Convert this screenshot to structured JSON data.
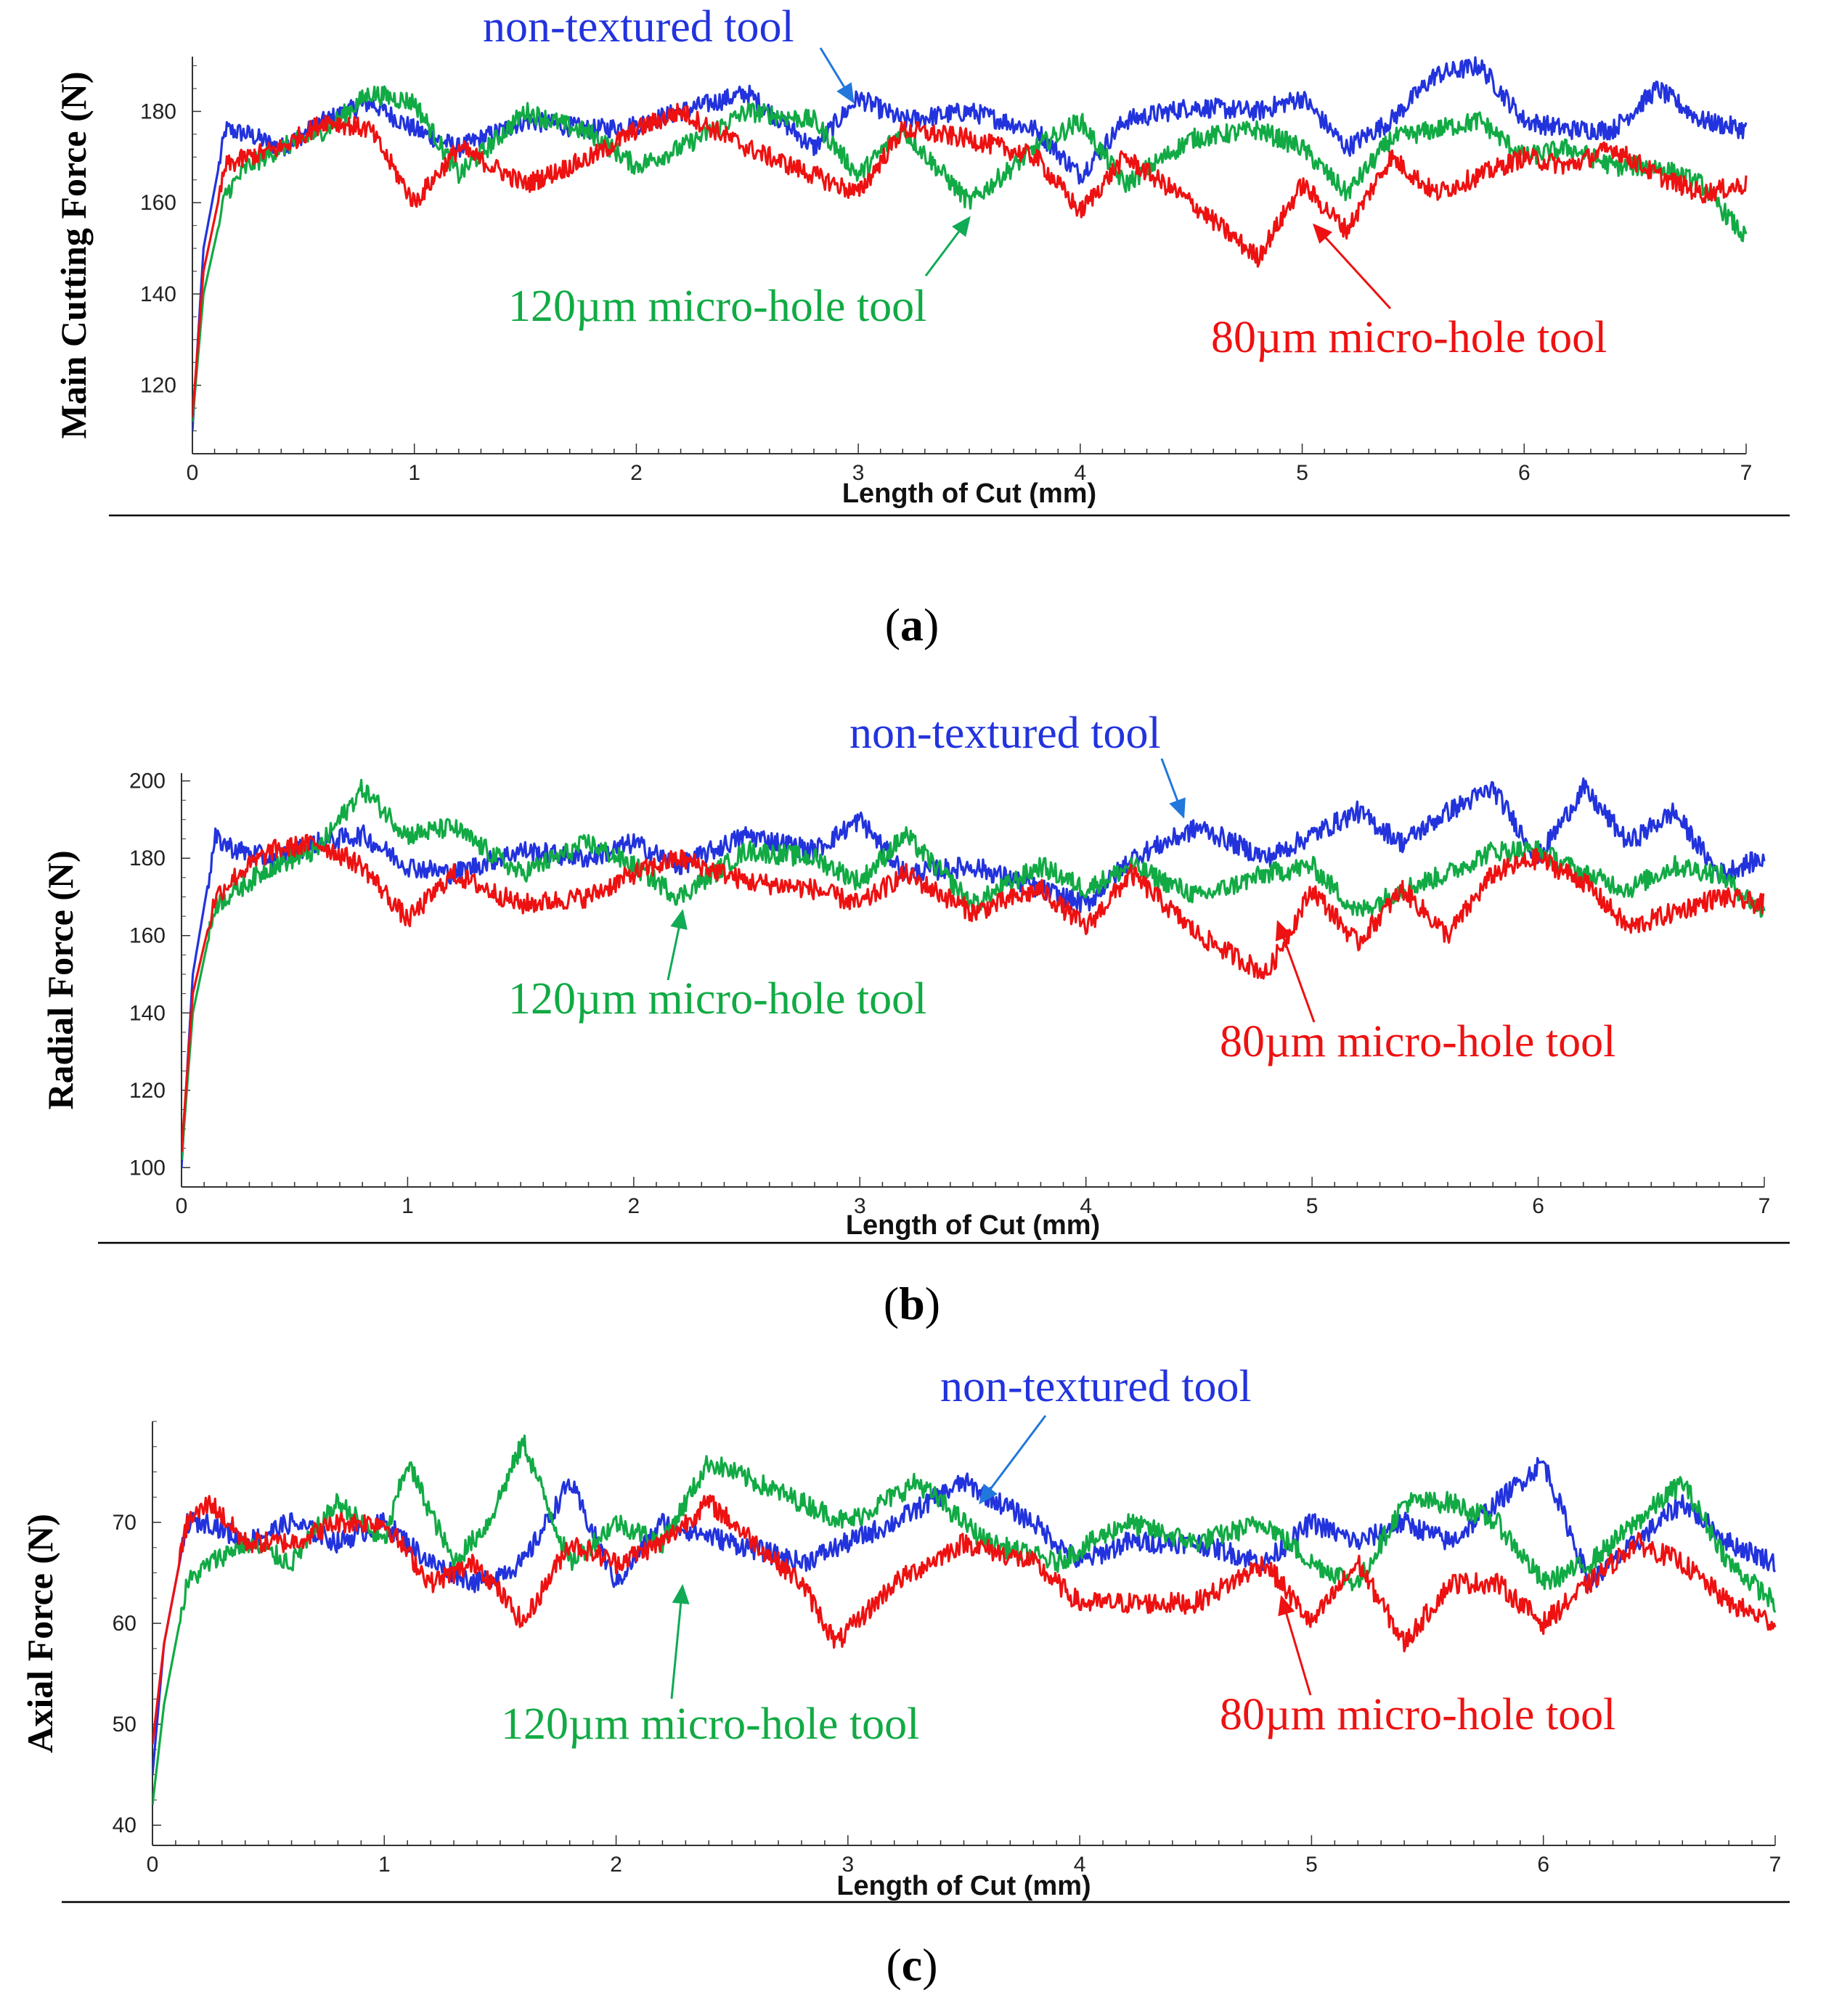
{
  "chart_data": [
    {
      "type": "line",
      "panel": "a",
      "caption_letter": "a",
      "xlabel": "Length of Cut (mm)",
      "ylabel": "Main Cutting Force (N)",
      "xlim": [
        0,
        7
      ],
      "ylim": [
        105,
        192
      ],
      "xticks": [
        0,
        1,
        2,
        3,
        4,
        5,
        6,
        7
      ],
      "yticks": [
        120,
        140,
        160,
        180
      ],
      "series": [
        {
          "name": "non-textured tool",
          "color": "#2233dd",
          "x": [
            0,
            0.05,
            0.15,
            0.25,
            0.4,
            0.6,
            0.8,
            1.0,
            1.2,
            1.5,
            1.8,
            2.0,
            2.2,
            2.5,
            2.8,
            3.0,
            3.2,
            3.5,
            3.8,
            4.0,
            4.2,
            4.5,
            4.8,
            5.0,
            5.2,
            5.4,
            5.6,
            5.8,
            6.0,
            6.2,
            6.4,
            6.6,
            6.8,
            7.0
          ],
          "values": [
            110,
            150,
            176,
            175,
            172,
            178,
            182,
            176,
            172,
            178,
            176,
            177,
            180,
            184,
            172,
            183,
            178,
            180,
            176,
            166,
            178,
            181,
            180,
            183,
            172,
            178,
            188,
            190,
            178,
            176,
            176,
            185,
            178,
            176
          ]
        },
        {
          "name": "120µm micro-hole tool",
          "color": "#11aa44",
          "x": [
            0,
            0.05,
            0.15,
            0.25,
            0.4,
            0.6,
            0.8,
            1.0,
            1.2,
            1.5,
            1.8,
            2.0,
            2.2,
            2.5,
            2.8,
            3.0,
            3.2,
            3.5,
            3.8,
            4.0,
            4.2,
            4.5,
            4.8,
            5.0,
            5.2,
            5.4,
            5.6,
            5.8,
            6.0,
            6.2,
            6.4,
            6.6,
            6.8,
            7.0
          ],
          "values": [
            112,
            140,
            162,
            168,
            172,
            176,
            184,
            182,
            166,
            180,
            175,
            168,
            172,
            180,
            178,
            166,
            176,
            160,
            172,
            178,
            164,
            174,
            176,
            172,
            162,
            174,
            176,
            178,
            170,
            172,
            168,
            168,
            164,
            152
          ]
        },
        {
          "name": "80µm micro-hole tool",
          "color": "#ee1111",
          "x": [
            0,
            0.05,
            0.15,
            0.25,
            0.4,
            0.6,
            0.8,
            1.0,
            1.2,
            1.5,
            1.8,
            2.0,
            2.2,
            2.5,
            2.8,
            3.0,
            3.2,
            3.5,
            3.8,
            4.0,
            4.2,
            4.5,
            4.8,
            5.0,
            5.2,
            5.4,
            5.6,
            5.8,
            6.0,
            6.2,
            6.4,
            6.6,
            6.8,
            7.0
          ],
          "values": [
            113,
            145,
            168,
            170,
            172,
            178,
            176,
            160,
            172,
            164,
            170,
            176,
            180,
            172,
            166,
            162,
            176,
            174,
            170,
            158,
            170,
            160,
            148,
            164,
            154,
            170,
            162,
            166,
            170,
            168,
            172,
            166,
            162,
            164
          ]
        }
      ],
      "annotations": [
        {
          "text": "non-textured tool",
          "color": "#2233dd"
        },
        {
          "text": "120µm micro-hole tool",
          "color": "#11aa44"
        },
        {
          "text": "80µm micro-hole tool",
          "color": "#ee1111"
        }
      ]
    },
    {
      "type": "line",
      "panel": "b",
      "caption_letter": "b",
      "xlabel": "Length of Cut (mm)",
      "ylabel": "Radial Force (N)",
      "xlim": [
        0,
        7
      ],
      "ylim": [
        95,
        202
      ],
      "xticks": [
        0,
        1,
        2,
        3,
        4,
        5,
        6,
        7
      ],
      "yticks": [
        100,
        120,
        140,
        160,
        180,
        200
      ],
      "series": [
        {
          "name": "non-textured tool",
          "color": "#2233dd",
          "x": [
            0,
            0.05,
            0.15,
            0.25,
            0.4,
            0.6,
            0.8,
            1.0,
            1.2,
            1.5,
            1.8,
            2.0,
            2.2,
            2.5,
            2.8,
            3.0,
            3.2,
            3.5,
            3.8,
            4.0,
            4.2,
            4.5,
            4.8,
            5.0,
            5.2,
            5.4,
            5.6,
            5.8,
            6.0,
            6.2,
            6.4,
            6.6,
            6.8,
            7.0
          ],
          "values": [
            100,
            150,
            185,
            182,
            180,
            184,
            186,
            178,
            176,
            182,
            180,
            184,
            178,
            186,
            182,
            190,
            176,
            178,
            172,
            168,
            180,
            188,
            180,
            186,
            192,
            184,
            192,
            198,
            180,
            198,
            184,
            192,
            176,
            180
          ]
        },
        {
          "name": "120µm micro-hole tool",
          "color": "#11aa44",
          "x": [
            0,
            0.05,
            0.15,
            0.25,
            0.4,
            0.6,
            0.8,
            1.0,
            1.2,
            1.5,
            1.8,
            2.0,
            2.2,
            2.5,
            2.8,
            3.0,
            3.2,
            3.5,
            3.8,
            4.0,
            4.2,
            4.5,
            4.8,
            5.0,
            5.2,
            5.4,
            5.6,
            5.8,
            6.0,
            6.2,
            6.4,
            6.6,
            6.8,
            7.0
          ],
          "values": [
            102,
            140,
            168,
            172,
            178,
            182,
            198,
            186,
            188,
            176,
            184,
            178,
            170,
            182,
            180,
            174,
            186,
            168,
            178,
            172,
            178,
            170,
            176,
            178,
            166,
            172,
            176,
            182,
            182,
            176,
            172,
            178,
            176,
            166
          ]
        },
        {
          "name": "80µm micro-hole tool",
          "color": "#ee1111",
          "x": [
            0,
            0.05,
            0.15,
            0.25,
            0.4,
            0.6,
            0.8,
            1.0,
            1.2,
            1.5,
            1.8,
            2.0,
            2.2,
            2.5,
            2.8,
            3.0,
            3.2,
            3.5,
            3.8,
            4.0,
            4.2,
            4.5,
            4.8,
            5.0,
            5.2,
            5.4,
            5.6,
            5.8,
            6.0,
            6.2,
            6.4,
            6.6,
            6.8,
            7.0
          ],
          "values": [
            104,
            145,
            170,
            176,
            182,
            184,
            178,
            164,
            176,
            168,
            170,
            176,
            180,
            174,
            172,
            168,
            176,
            166,
            172,
            162,
            176,
            160,
            150,
            172,
            158,
            172,
            160,
            176,
            180,
            174,
            162,
            166,
            170,
            168
          ]
        }
      ],
      "annotations": [
        {
          "text": "non-textured tool",
          "color": "#2233dd"
        },
        {
          "text": "120µm micro-hole tool",
          "color": "#11aa44"
        },
        {
          "text": "80µm micro-hole tool",
          "color": "#ee1111"
        }
      ]
    },
    {
      "type": "line",
      "panel": "c",
      "caption_letter": "c",
      "xlabel": "Length of Cut (mm)",
      "ylabel": "Axial Force (N)",
      "xlim": [
        0,
        7
      ],
      "ylim": [
        38,
        80
      ],
      "xticks": [
        0,
        1,
        2,
        3,
        4,
        5,
        6,
        7
      ],
      "yticks": [
        40,
        50,
        60,
        70
      ],
      "series": [
        {
          "name": "non-textured tool",
          "color": "#2233dd",
          "x": [
            0,
            0.05,
            0.15,
            0.25,
            0.4,
            0.6,
            0.8,
            1.0,
            1.2,
            1.4,
            1.6,
            1.8,
            2.0,
            2.2,
            2.5,
            2.8,
            3.0,
            3.2,
            3.5,
            3.8,
            4.0,
            4.2,
            4.5,
            4.8,
            5.0,
            5.2,
            5.4,
            5.6,
            5.8,
            6.0,
            6.2,
            6.4,
            6.6,
            6.8,
            7.0
          ],
          "values": [
            45,
            58,
            70,
            70,
            68,
            70,
            68,
            70,
            66,
            64,
            66,
            74,
            64,
            70,
            68,
            66,
            68,
            70,
            74,
            70,
            66,
            68,
            68,
            66,
            70,
            68,
            70,
            68,
            72,
            76,
            64,
            68,
            72,
            68,
            66
          ]
        },
        {
          "name": "120µm micro-hole tool",
          "color": "#11aa44",
          "x": [
            0,
            0.05,
            0.15,
            0.25,
            0.4,
            0.6,
            0.8,
            1.0,
            1.1,
            1.3,
            1.45,
            1.6,
            1.8,
            2.0,
            2.2,
            2.4,
            2.6,
            2.8,
            3.0,
            3.3,
            3.6,
            3.9,
            4.2,
            4.5,
            4.8,
            5.0,
            5.2,
            5.4,
            5.6,
            5.8,
            6.0,
            6.2,
            6.4,
            6.6,
            6.8,
            7.0
          ],
          "values": [
            42,
            52,
            64,
            66,
            68,
            66,
            72,
            68,
            76,
            66,
            70,
            78,
            66,
            70,
            68,
            76,
            74,
            72,
            70,
            74,
            68,
            66,
            70,
            68,
            70,
            66,
            64,
            72,
            72,
            70,
            64,
            66,
            70,
            74,
            66,
            62
          ]
        },
        {
          "name": "80µm micro-hole tool",
          "color": "#ee1111",
          "x": [
            0,
            0.05,
            0.15,
            0.25,
            0.4,
            0.6,
            0.8,
            1.0,
            1.2,
            1.4,
            1.6,
            1.8,
            2.0,
            2.2,
            2.4,
            2.6,
            2.8,
            2.95,
            3.2,
            3.5,
            3.8,
            4.0,
            4.2,
            4.5,
            4.8,
            5.0,
            5.2,
            5.4,
            5.6,
            5.8,
            6.0,
            6.2,
            6.4,
            6.6,
            6.8,
            7.0
          ],
          "values": [
            48,
            58,
            70,
            72,
            68,
            68,
            70,
            70,
            64,
            66,
            60,
            68,
            66,
            68,
            72,
            68,
            64,
            58,
            64,
            68,
            66,
            62,
            62,
            62,
            66,
            60,
            66,
            58,
            64,
            64,
            60,
            64,
            68,
            66,
            62,
            60
          ]
        }
      ],
      "annotations": [
        {
          "text": "non-textured tool",
          "color": "#2233dd"
        },
        {
          "text": "120µm micro-hole tool",
          "color": "#11aa44"
        },
        {
          "text": "80µm micro-hole tool",
          "color": "#ee1111"
        }
      ]
    }
  ]
}
